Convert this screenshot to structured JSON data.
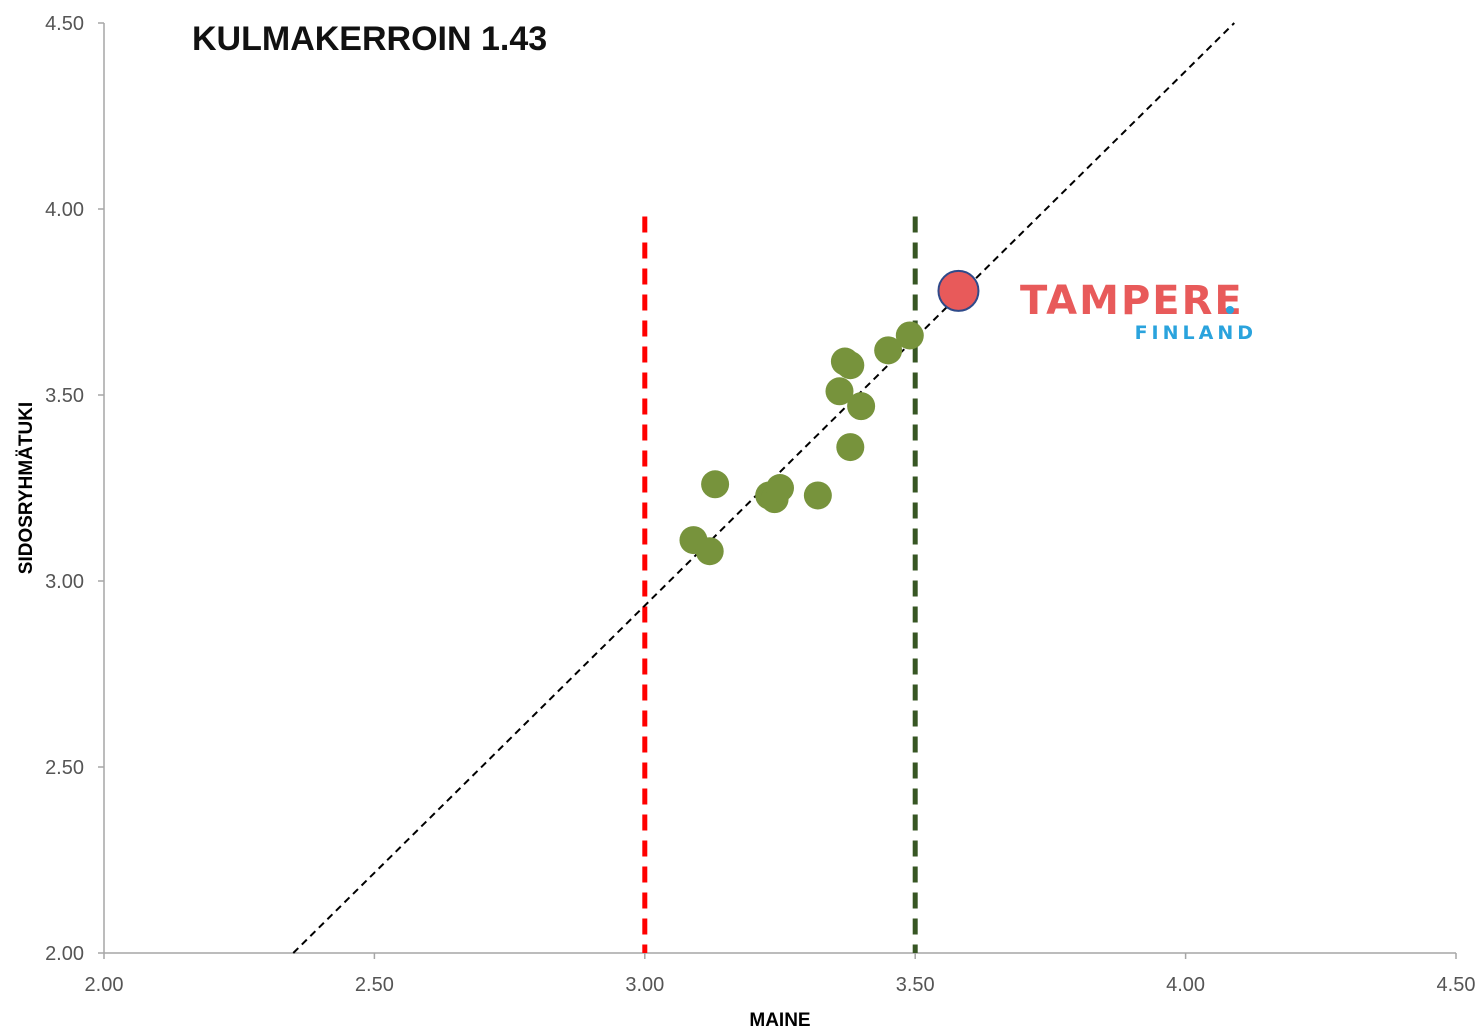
{
  "chart_data": {
    "type": "scatter",
    "title": "KULMAKERROIN 1.43",
    "xlabel": "MAINE",
    "ylabel": "SIDOSRYHMÄTUKI",
    "xlim": [
      2.0,
      4.5
    ],
    "ylim": [
      2.0,
      4.5
    ],
    "x_ticks": [
      "2.00",
      "2.50",
      "3.00",
      "3.50",
      "4.00",
      "4.50"
    ],
    "y_ticks": [
      "2.00",
      "2.50",
      "3.00",
      "3.50",
      "4.00",
      "4.50"
    ],
    "grid": false,
    "series": [
      {
        "color": "#77933c",
        "points": [
          {
            "x": 3.09,
            "y": 3.11
          },
          {
            "x": 3.12,
            "y": 3.08
          },
          {
            "x": 3.13,
            "y": 3.26
          },
          {
            "x": 3.23,
            "y": 3.23
          },
          {
            "x": 3.24,
            "y": 3.22
          },
          {
            "x": 3.25,
            "y": 3.25
          },
          {
            "x": 3.32,
            "y": 3.23
          },
          {
            "x": 3.36,
            "y": 3.51
          },
          {
            "x": 3.37,
            "y": 3.59
          },
          {
            "x": 3.38,
            "y": 3.58
          },
          {
            "x": 3.38,
            "y": 3.36
          },
          {
            "x": 3.4,
            "y": 3.47
          },
          {
            "x": 3.45,
            "y": 3.62
          },
          {
            "x": 3.49,
            "y": 3.66
          }
        ]
      },
      {
        "color": "#e85a5a",
        "points": [
          {
            "x": 3.58,
            "y": 3.78
          }
        ]
      }
    ],
    "trend_line": {
      "slope": 1.43,
      "points": [
        {
          "x": 2.35,
          "y": 2.0
        },
        {
          "x": 4.09,
          "y": 4.5
        }
      ],
      "color": "#000000"
    },
    "reference_lines": [
      {
        "x": 3.0,
        "color": "#ff0000",
        "y_range": [
          2.0,
          3.98
        ]
      },
      {
        "x": 3.5,
        "color": "#375623",
        "y_range": [
          2.0,
          3.98
        ]
      }
    ],
    "logo": {
      "text": "TAMPERE",
      "subtext": "FINLAND",
      "main_color": "#e85a5a",
      "sub_color": "#2aa3dd"
    }
  }
}
